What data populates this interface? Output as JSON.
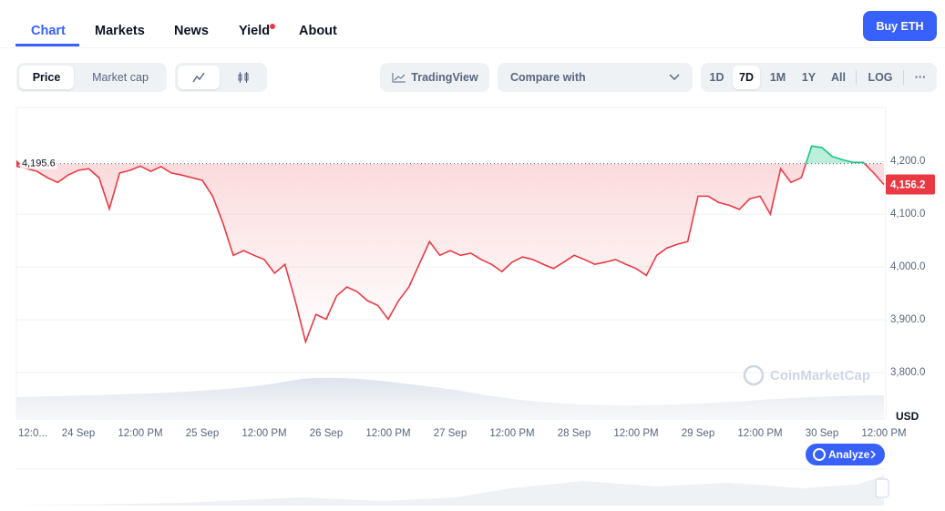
{
  "nav": {
    "tabs": [
      "Chart",
      "Markets",
      "News",
      "Yield",
      "About"
    ],
    "buy": "Buy ETH"
  },
  "toolbar": {
    "metric": [
      "Price",
      "Market cap"
    ],
    "tradingview": "TradingView",
    "compare": "Compare with",
    "ranges": [
      "1D",
      "7D",
      "1M",
      "1Y",
      "All"
    ],
    "log": "LOG",
    "more": "···"
  },
  "watermark": "CoinMarketCap",
  "analyze": "Analyze",
  "chart_data": {
    "type": "line",
    "currency": "USD",
    "color_down": "#ea3943",
    "color_up": "#16c784",
    "categories": [
      "12:0...",
      null,
      null,
      null,
      null,
      null,
      "24 Sep",
      null,
      null,
      null,
      null,
      null,
      "12:00 PM",
      null,
      null,
      null,
      null,
      null,
      "25 Sep",
      null,
      null,
      null,
      null,
      null,
      "12:00 PM",
      null,
      null,
      null,
      null,
      null,
      "26 Sep",
      null,
      null,
      null,
      null,
      null,
      "12:00 PM",
      null,
      null,
      null,
      null,
      null,
      "27 Sep",
      null,
      null,
      null,
      null,
      null,
      "12:00 PM",
      null,
      null,
      null,
      null,
      null,
      "28 Sep",
      null,
      null,
      null,
      null,
      null,
      "12:00 PM",
      null,
      null,
      null,
      null,
      null,
      "29 Sep",
      null,
      null,
      null,
      null,
      null,
      "12:00 PM",
      null,
      null,
      null,
      null,
      null,
      "30 Sep",
      null,
      null,
      null,
      null,
      null,
      "12:00 PM"
    ],
    "values": [
      4191,
      4186,
      4181,
      4169,
      4160,
      4174,
      4183,
      4186,
      4169,
      4110,
      4178,
      4183,
      4191,
      4181,
      4190,
      4178,
      4174,
      4169,
      4164,
      4134,
      4083,
      4022,
      4031,
      4022,
      4014,
      3988,
      4005,
      3936,
      3858,
      3910,
      3901,
      3945,
      3962,
      3953,
      3936,
      3927,
      3901,
      3936,
      3962,
      4005,
      4048,
      4022,
      4031,
      4022,
      4026,
      4014,
      4005,
      3991,
      4009,
      4019,
      4014,
      4005,
      3997,
      4009,
      4022,
      4014,
      4005,
      4009,
      4014,
      4005,
      3997,
      3984,
      4022,
      4036,
      4043,
      4048,
      4134,
      4134,
      4122,
      4117,
      4109,
      4129,
      4134,
      4100,
      4186,
      4160,
      4169,
      4229,
      4226,
      4209,
      4203,
      4198,
      4198,
      4178,
      4156
    ],
    "ylim": [
      3712,
      4302
    ],
    "yticks": [
      {
        "value": 3800,
        "label": "3,800.0"
      },
      {
        "value": 3900,
        "label": "3,900.0"
      },
      {
        "value": 4000,
        "label": "4,000.0"
      },
      {
        "value": 4100,
        "label": "4,100.0"
      },
      {
        "value": 4200,
        "label": "4,200.0"
      }
    ],
    "reference": {
      "value": 4195.6,
      "label": "4,195.6"
    },
    "last_price": {
      "value": 4156.2,
      "label": "4,156.2"
    },
    "grid": true
  }
}
